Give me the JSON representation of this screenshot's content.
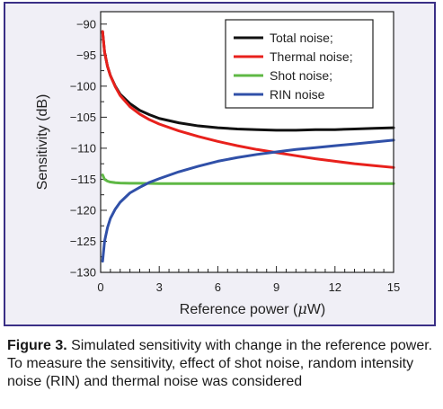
{
  "chart_data": {
    "type": "line",
    "xlabel_text": "Reference power (",
    "xlabel_mu": "μ",
    "xlabel_unit": "W)",
    "ylabel": "Sensitivity (dB)",
    "xlim": [
      0,
      15
    ],
    "ylim": [
      -130,
      -88
    ],
    "xticks": [
      0,
      3,
      6,
      9,
      12,
      15
    ],
    "yticks": [
      -90,
      -95,
      -100,
      -105,
      -110,
      -115,
      -120,
      -125,
      -130
    ],
    "ytick_labels": [
      "−90",
      "−95",
      "−100",
      "−105",
      "−110",
      "−115",
      "−120",
      "−125",
      "−130"
    ],
    "legend_position": "top-right",
    "series": [
      {
        "name": "Total noise;",
        "color": "#111111",
        "x": [
          0.1,
          0.2,
          0.35,
          0.5,
          0.75,
          1,
          1.5,
          2,
          2.5,
          3,
          4,
          5,
          6,
          7,
          8,
          9,
          10,
          11,
          12,
          13,
          14,
          15
        ],
        "y": [
          -91.2,
          -94.5,
          -96.8,
          -98.3,
          -100.0,
          -101.3,
          -102.8,
          -103.9,
          -104.6,
          -105.2,
          -105.9,
          -106.4,
          -106.7,
          -106.9,
          -107.0,
          -107.1,
          -107.1,
          -107.0,
          -107.0,
          -106.9,
          -106.8,
          -106.7
        ]
      },
      {
        "name": "Thermal noise;",
        "color": "#e8211c",
        "x": [
          0.1,
          0.2,
          0.35,
          0.5,
          0.75,
          1,
          1.5,
          2,
          2.5,
          3,
          4,
          5,
          6,
          7,
          8,
          9,
          10,
          11,
          12,
          13,
          14,
          15
        ],
        "y": [
          -91.2,
          -94.5,
          -96.8,
          -98.3,
          -100.1,
          -101.5,
          -103.3,
          -104.5,
          -105.4,
          -106.1,
          -107.2,
          -108.1,
          -108.9,
          -109.6,
          -110.2,
          -110.7,
          -111.2,
          -111.7,
          -112.1,
          -112.5,
          -112.8,
          -113.1
        ]
      },
      {
        "name": "Shot noise;",
        "color": "#5fb845",
        "x": [
          0.1,
          0.2,
          0.35,
          0.5,
          0.75,
          1,
          1.5,
          2,
          3,
          4,
          6,
          8,
          10,
          12,
          15
        ],
        "y": [
          -114.3,
          -115.0,
          -115.3,
          -115.45,
          -115.55,
          -115.6,
          -115.65,
          -115.65,
          -115.7,
          -115.7,
          -115.7,
          -115.7,
          -115.7,
          -115.7,
          -115.7
        ]
      },
      {
        "name": "RIN noise",
        "color": "#3050a8",
        "x": [
          0.1,
          0.2,
          0.35,
          0.5,
          0.75,
          1,
          1.5,
          2,
          2.5,
          3,
          4,
          5,
          6,
          7,
          8,
          9,
          10,
          11,
          12,
          13,
          14,
          15
        ],
        "y": [
          -128.2,
          -125.0,
          -122.8,
          -121.3,
          -119.8,
          -118.7,
          -117.2,
          -116.3,
          -115.5,
          -114.9,
          -113.8,
          -112.9,
          -112.1,
          -111.5,
          -111.0,
          -110.6,
          -110.2,
          -109.9,
          -109.6,
          -109.3,
          -109.0,
          -108.7
        ]
      }
    ]
  },
  "caption": {
    "label": "Figure 3.",
    "text": " Simulated sensitivity with change in the reference power. To measure the sensitivity, effect of shot noise, random intensity noise (RIN) and thermal noise was considered"
  },
  "colors": {
    "frame_border": "#3a2f86",
    "frame_background": "#f0eff6"
  }
}
